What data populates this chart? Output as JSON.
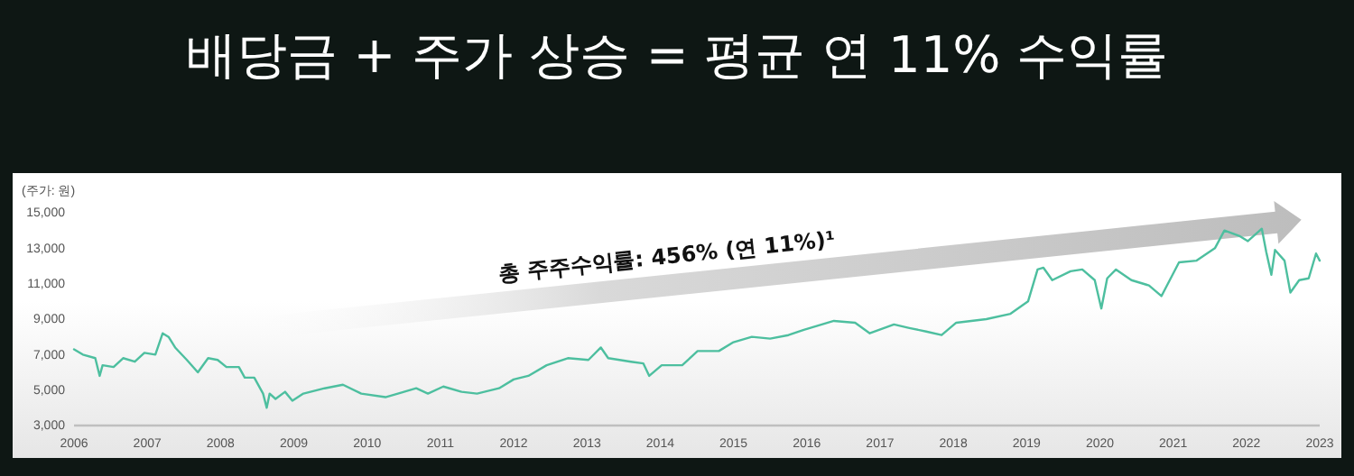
{
  "chart_data": {
    "type": "line",
    "title": "배당금 + 주가 상승 = 평균 연 11% 수익률",
    "ylabel": "(주가: 원)",
    "annotations": [
      "총 주주수익률: 456% (연 11%)¹"
    ],
    "x": [
      2006.0,
      2006.12,
      2006.29,
      2006.35,
      2006.39,
      2006.54,
      2006.67,
      2006.83,
      2006.96,
      2007.11,
      2007.21,
      2007.29,
      2007.38,
      2007.54,
      2007.69,
      2007.83,
      2007.96,
      2008.08,
      2008.25,
      2008.33,
      2008.46,
      2008.58,
      2008.63,
      2008.67,
      2008.75,
      2008.88,
      2008.98,
      2009.13,
      2009.42,
      2009.67,
      2009.92,
      2010.25,
      2010.42,
      2010.67,
      2010.83,
      2011.04,
      2011.29,
      2011.5,
      2011.8,
      2012.0,
      2012.2,
      2012.45,
      2012.74,
      2013.02,
      2013.19,
      2013.29,
      2013.6,
      2013.77,
      2013.85,
      2014.02,
      2014.3,
      2014.51,
      2014.8,
      2015.0,
      2015.25,
      2015.5,
      2015.75,
      2015.96,
      2016.37,
      2016.66,
      2016.86,
      2017.19,
      2017.4,
      2017.63,
      2017.84,
      2018.04,
      2018.45,
      2018.78,
      2019.02,
      2019.15,
      2019.23,
      2019.35,
      2019.6,
      2019.76,
      2019.93,
      2020.02,
      2020.1,
      2020.22,
      2020.43,
      2020.67,
      2020.84,
      2021.08,
      2021.32,
      2021.57,
      2021.7,
      2021.9,
      2022.02,
      2022.21,
      2022.27,
      2022.34,
      2022.39,
      2022.52,
      2022.6,
      2022.72,
      2022.85,
      2022.95,
      2023.0
    ],
    "series": [
      {
        "color": "#4dbf9f",
        "values": [
          7300,
          7000,
          6800,
          5800,
          6400,
          6300,
          6800,
          6600,
          7100,
          7000,
          8200,
          8000,
          7400,
          6700,
          6000,
          6800,
          6700,
          6300,
          6300,
          5700,
          5700,
          4800,
          4000,
          4800,
          4500,
          4900,
          4400,
          4800,
          5100,
          5300,
          4800,
          4600,
          4800,
          5100,
          4800,
          5200,
          4900,
          4800,
          5100,
          5600,
          5800,
          6400,
          6800,
          6700,
          7400,
          6800,
          6600,
          6500,
          5800,
          6400,
          6400,
          7200,
          7200,
          7700,
          8000,
          7900,
          8100,
          8400,
          8900,
          8800,
          8200,
          8700,
          8500,
          8300,
          8100,
          8800,
          9000,
          9300,
          10000,
          11800,
          11900,
          11200,
          11700,
          11800,
          11200,
          9600,
          11300,
          11800,
          11200,
          10900,
          10300,
          12200,
          12300,
          13000,
          14000,
          13700,
          13400,
          14100,
          12800,
          11500,
          12900,
          12300,
          10500,
          11200,
          11300,
          12700,
          12300
        ]
      }
    ],
    "xlim": [
      2006,
      2023
    ],
    "xticks": [
      2006,
      2007,
      2008,
      2009,
      2010,
      2011,
      2012,
      2013,
      2014,
      2015,
      2016,
      2017,
      2018,
      2019,
      2020,
      2021,
      2022,
      2023
    ],
    "ylim": [
      3000,
      15000
    ],
    "yticks": [
      {
        "value": 3000,
        "label": "3,000"
      },
      {
        "value": 5000,
        "label": "5,000"
      },
      {
        "value": 7000,
        "label": "7,000"
      },
      {
        "value": 9000,
        "label": "9,000"
      },
      {
        "value": 11000,
        "label": "11,000"
      },
      {
        "value": 13000,
        "label": "13,000"
      },
      {
        "value": 15000,
        "label": "15,000"
      }
    ],
    "marker": "none",
    "line_style": "solid"
  }
}
